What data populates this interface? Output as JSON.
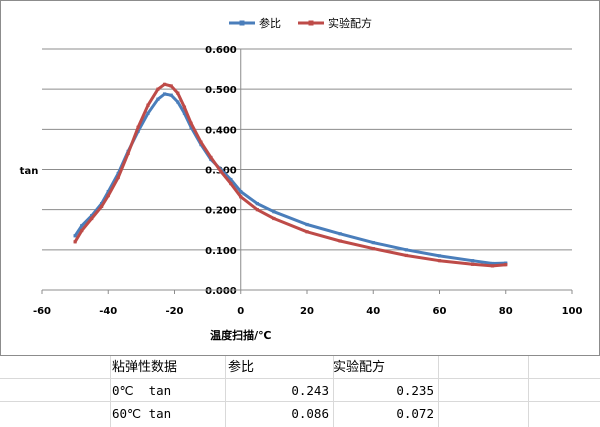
{
  "chart_data": {
    "type": "line",
    "title": "",
    "xlabel": "温度扫描/℃",
    "ylabel": "tan",
    "xlim": [
      -60,
      100
    ],
    "ylim": [
      0,
      0.6
    ],
    "x_ticks": [
      "-60",
      "-40",
      "-20",
      "0",
      "20",
      "40",
      "60",
      "80",
      "100"
    ],
    "y_ticks": [
      "0.000",
      "0.100",
      "0.200",
      "0.300",
      "0.400",
      "0.500",
      "0.600"
    ],
    "legend_position": "top-center",
    "grid": "horizontal",
    "series": [
      {
        "name": "参比",
        "color": "#4a7ebb",
        "x": [
          -50,
          -48,
          -45,
          -42,
          -40,
          -37,
          -34,
          -31,
          -28,
          -25,
          -23,
          -21,
          -19,
          -17,
          -15,
          -12,
          -9,
          -6,
          -3,
          0,
          5,
          10,
          20,
          30,
          40,
          50,
          60,
          70,
          76,
          80
        ],
        "y": [
          0.135,
          0.16,
          0.185,
          0.215,
          0.245,
          0.29,
          0.345,
          0.395,
          0.44,
          0.475,
          0.488,
          0.485,
          0.468,
          0.44,
          0.405,
          0.362,
          0.325,
          0.3,
          0.275,
          0.245,
          0.215,
          0.195,
          0.163,
          0.14,
          0.118,
          0.1,
          0.085,
          0.073,
          0.066,
          0.067
        ]
      },
      {
        "name": "实验配方",
        "color": "#be4b48",
        "x": [
          -50,
          -48,
          -45,
          -42,
          -40,
          -37,
          -34,
          -31,
          -28,
          -25,
          -23,
          -21,
          -19,
          -17,
          -15,
          -12,
          -9,
          -6,
          -3,
          0,
          5,
          10,
          20,
          30,
          40,
          50,
          60,
          70,
          76,
          80
        ],
        "y": [
          0.12,
          0.148,
          0.178,
          0.208,
          0.235,
          0.28,
          0.34,
          0.405,
          0.46,
          0.5,
          0.512,
          0.508,
          0.49,
          0.455,
          0.415,
          0.368,
          0.33,
          0.295,
          0.265,
          0.232,
          0.2,
          0.178,
          0.145,
          0.122,
          0.103,
          0.086,
          0.073,
          0.064,
          0.06,
          0.063
        ]
      }
    ]
  },
  "table": {
    "header": [
      "粘弹性数据",
      "参比",
      "实验配方"
    ],
    "rows": [
      {
        "label": "0℃  tan",
        "ref": "0.243",
        "exp": "0.235"
      },
      {
        "label": "60℃ tan",
        "ref": "0.086",
        "exp": "0.072"
      }
    ]
  }
}
